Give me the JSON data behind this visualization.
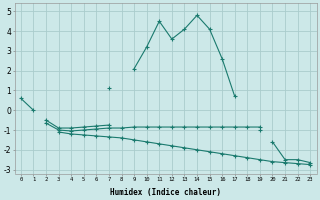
{
  "xlabel": "Humidex (Indice chaleur)",
  "background_color": "#cce8e8",
  "grid_color": "#aacccc",
  "line_color": "#1a7a6e",
  "xlim": [
    -0.5,
    23.5
  ],
  "ylim": [
    -3.2,
    5.4
  ],
  "ytick_values": [
    -3,
    -2,
    -1,
    0,
    1,
    2,
    3,
    4,
    5
  ],
  "lines": [
    [
      0.6,
      0.0,
      null,
      null,
      null,
      null,
      null,
      1.1,
      null,
      2.1,
      3.2,
      4.5,
      3.6,
      4.1,
      4.8,
      4.1,
      2.6,
      0.7,
      null,
      null,
      null,
      null,
      null,
      null
    ],
    [
      null,
      null,
      -0.5,
      -0.9,
      -0.9,
      -0.85,
      -0.8,
      -0.75,
      null,
      null,
      null,
      null,
      null,
      null,
      null,
      null,
      null,
      null,
      null,
      -1.0,
      null,
      null,
      null,
      null
    ],
    [
      null,
      null,
      -0.65,
      -1.0,
      -1.05,
      -1.0,
      -0.95,
      -0.9,
      -0.9,
      -0.85,
      -0.85,
      -0.85,
      -0.85,
      -0.85,
      -0.85,
      -0.85,
      -0.85,
      -0.85,
      -0.85,
      -0.85,
      null,
      null,
      null,
      null
    ],
    [
      null,
      null,
      null,
      -1.1,
      -1.2,
      -1.25,
      -1.3,
      -1.35,
      -1.4,
      -1.5,
      -1.6,
      -1.7,
      -1.8,
      -1.9,
      -2.0,
      -2.1,
      -2.2,
      -2.3,
      -2.4,
      -2.5,
      -2.6,
      -2.65,
      -2.7,
      -2.75
    ],
    [
      null,
      null,
      null,
      null,
      null,
      null,
      null,
      null,
      null,
      null,
      null,
      null,
      null,
      null,
      null,
      null,
      null,
      null,
      null,
      null,
      -1.6,
      -2.5,
      -2.5,
      -2.65
    ]
  ]
}
